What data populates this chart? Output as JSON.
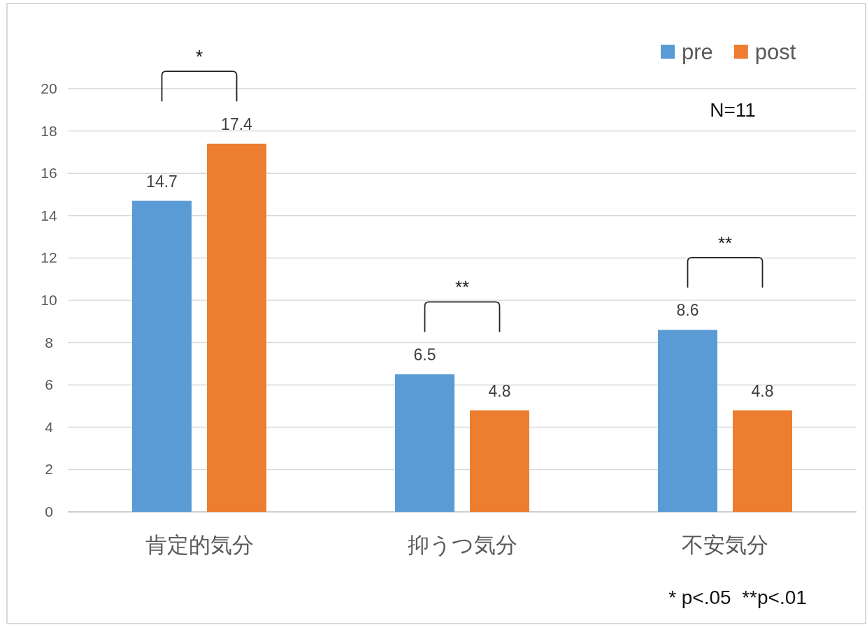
{
  "chart_data": {
    "type": "bar",
    "categories": [
      "肯定的気分",
      "抑うつ気分",
      "不安気分"
    ],
    "series": [
      {
        "name": "pre",
        "color": "#5b9bd5",
        "values": [
          14.7,
          6.5,
          8.6
        ]
      },
      {
        "name": "post",
        "color": "#ed7d31",
        "values": [
          17.4,
          4.8,
          4.8
        ]
      }
    ],
    "ylim": [
      0,
      20
    ],
    "yticks": [
      0,
      2,
      4,
      6,
      8,
      10,
      12,
      14,
      16,
      18,
      20
    ],
    "grid": "y",
    "legend": "top right",
    "data_labels": true,
    "annotations": [
      "*",
      "**",
      "**",
      "N=11",
      "* p<.05  **p<.01"
    ]
  }
}
